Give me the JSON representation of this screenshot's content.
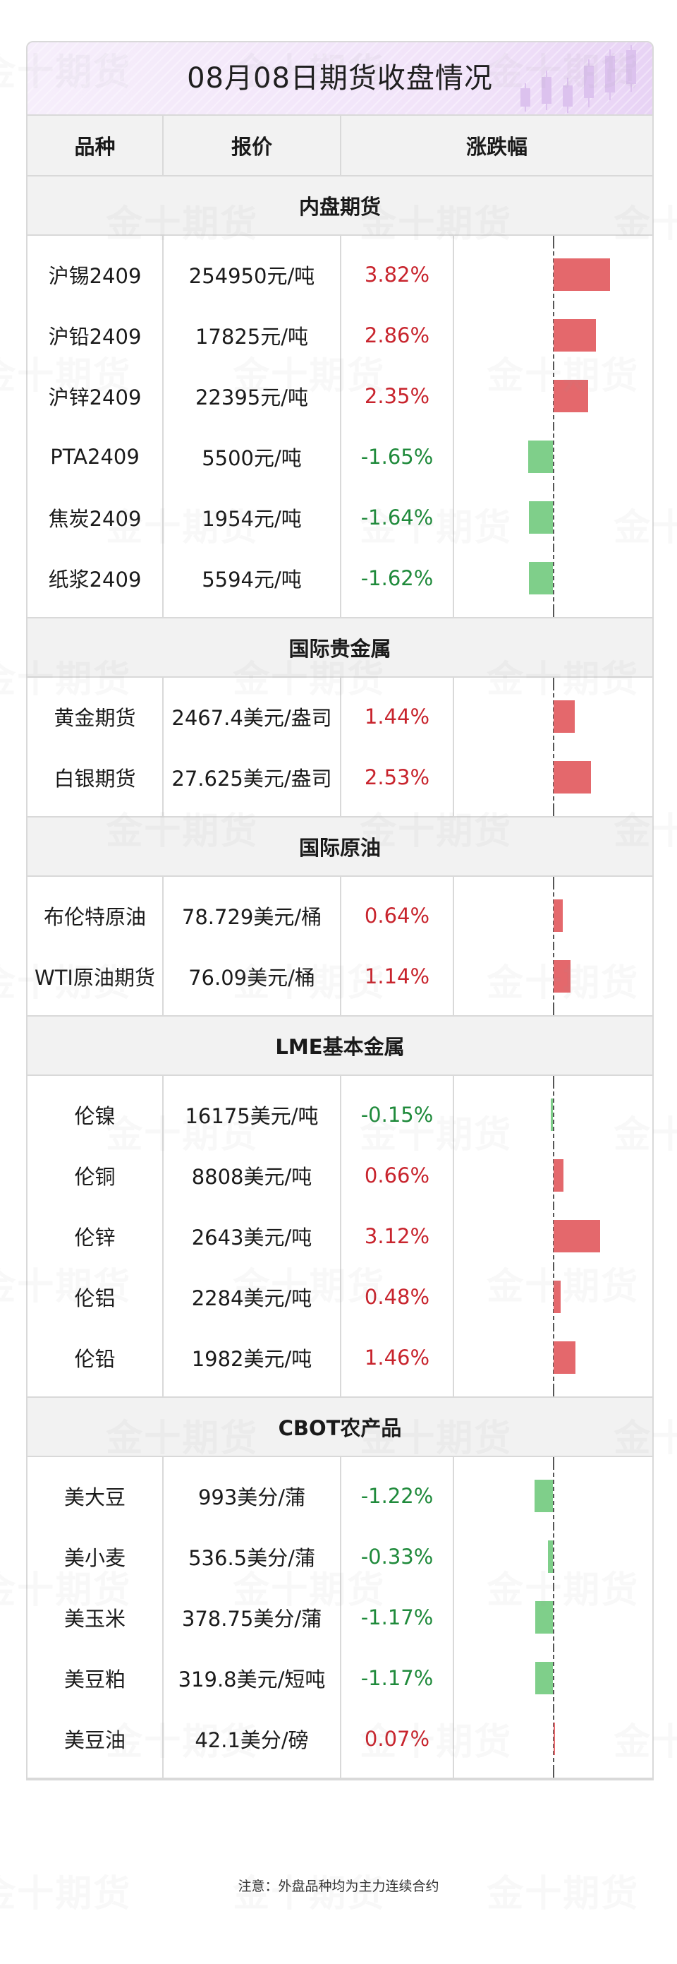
{
  "title": "08月08日期货收盘情况",
  "headers": [
    "品种",
    "报价",
    "涨跌幅"
  ],
  "bar_scale_max": 4,
  "colors": {
    "up": "#c8242d",
    "down": "#1f8a3b",
    "bar_up": "#e4686c",
    "bar_down": "#7fcf8a"
  },
  "sections": [
    {
      "name": "内盘期货",
      "rows": [
        {
          "name": "沪锡2409",
          "price": "254950元/吨",
          "change": "3.82%",
          "value": 3.82
        },
        {
          "name": "沪铅2409",
          "price": "17825元/吨",
          "change": "2.86%",
          "value": 2.86
        },
        {
          "name": "沪锌2409",
          "price": "22395元/吨",
          "change": "2.35%",
          "value": 2.35
        },
        {
          "name": "PTA2409",
          "price": "5500元/吨",
          "change": "-1.65%",
          "value": -1.65
        },
        {
          "name": "焦炭2409",
          "price": "1954元/吨",
          "change": "-1.64%",
          "value": -1.64
        },
        {
          "name": "纸浆2409",
          "price": "5594元/吨",
          "change": "-1.62%",
          "value": -1.62
        }
      ]
    },
    {
      "name": "国际贵金属",
      "rows": [
        {
          "name": "黄金期货",
          "price": "2467.4美元/盎司",
          "change": "1.44%",
          "value": 1.44
        },
        {
          "name": "白银期货",
          "price": "27.625美元/盎司",
          "change": "2.53%",
          "value": 2.53
        }
      ]
    },
    {
      "name": "国际原油",
      "rows": [
        {
          "name": "布伦特原油",
          "price": "78.729美元/桶",
          "change": "0.64%",
          "value": 0.64
        },
        {
          "name": "WTI原油期货",
          "price": "76.09美元/桶",
          "change": "1.14%",
          "value": 1.14
        }
      ]
    },
    {
      "name": "LME基本金属",
      "rows": [
        {
          "name": "伦镍",
          "price": "16175美元/吨",
          "change": "-0.15%",
          "value": -0.15
        },
        {
          "name": "伦铜",
          "price": "8808美元/吨",
          "change": "0.66%",
          "value": 0.66
        },
        {
          "name": "伦锌",
          "price": "2643美元/吨",
          "change": "3.12%",
          "value": 3.12
        },
        {
          "name": "伦铝",
          "price": "2284美元/吨",
          "change": "0.48%",
          "value": 0.48
        },
        {
          "name": "伦铅",
          "price": "1982美元/吨",
          "change": "1.46%",
          "value": 1.46
        }
      ]
    },
    {
      "name": "CBOT农产品",
      "rows": [
        {
          "name": "美大豆",
          "price": "993美分/蒲",
          "change": "-1.22%",
          "value": -1.22
        },
        {
          "name": "美小麦",
          "price": "536.5美分/蒲",
          "change": "-0.33%",
          "value": -0.33
        },
        {
          "name": "美玉米",
          "price": "378.75美分/蒲",
          "change": "-1.17%",
          "value": -1.17
        },
        {
          "name": "美豆粕",
          "price": "319.8美元/短吨",
          "change": "-1.17%",
          "value": -1.17
        },
        {
          "name": "美豆油",
          "price": "42.1美分/磅",
          "change": "0.07%",
          "value": 0.07
        }
      ]
    }
  ],
  "note": "注意：外盘品种均为主力连续合约",
  "watermark": {
    "text": "金十期货",
    "icon": "jin10-logo-icon"
  }
}
